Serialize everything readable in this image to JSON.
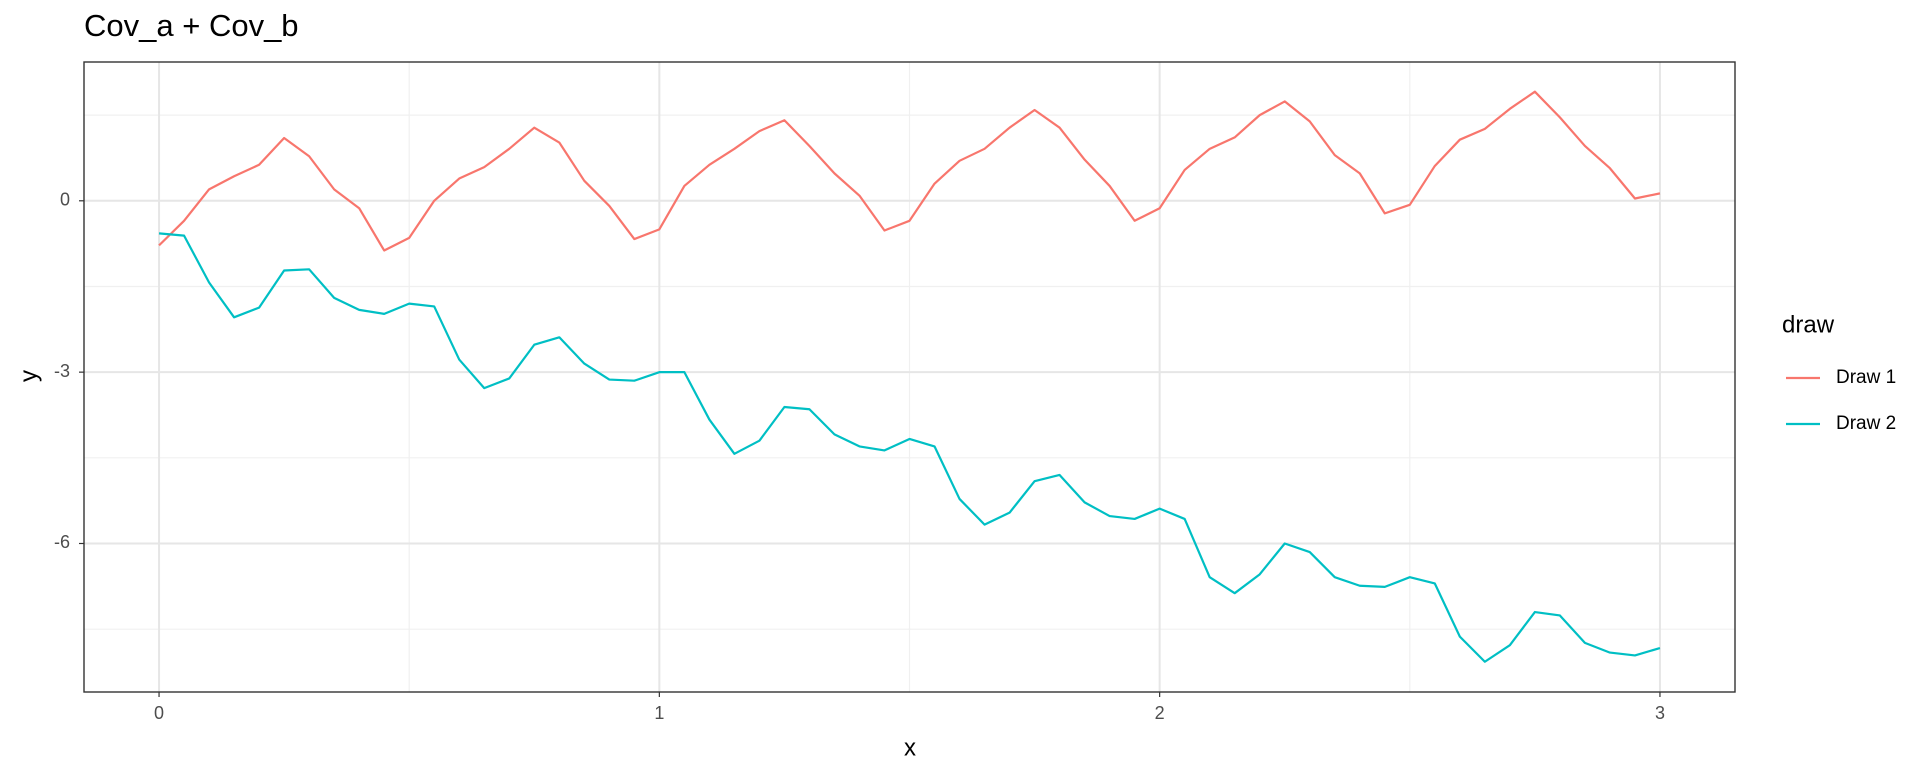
{
  "chart_data": {
    "type": "line",
    "title": "Cov_a + Cov_b",
    "x_label": "x",
    "y_label": "y",
    "x": [
      0,
      0.05,
      0.1,
      0.15,
      0.2,
      0.25,
      0.3,
      0.35,
      0.4,
      0.45,
      0.5,
      0.55,
      0.6,
      0.65,
      0.7,
      0.75,
      0.8,
      0.85,
      0.9,
      0.95,
      1.0,
      1.05,
      1.1,
      1.15,
      1.2,
      1.25,
      1.3,
      1.35,
      1.4,
      1.45,
      1.5,
      1.55,
      1.6,
      1.65,
      1.7,
      1.75,
      1.8,
      1.85,
      1.9,
      1.95,
      2.0,
      2.05,
      2.1,
      2.15,
      2.2,
      2.25,
      2.3,
      2.35,
      2.4,
      2.45,
      2.5,
      2.55,
      2.6,
      2.65,
      2.7,
      2.75,
      2.8,
      2.85,
      2.9,
      2.95,
      3.0
    ],
    "series": [
      {
        "name": "Draw 1",
        "color": "#F8766D",
        "values": [
          -0.78,
          -0.35,
          0.2,
          0.43,
          0.63,
          1.1,
          0.78,
          0.2,
          -0.13,
          -0.87,
          -0.65,
          0,
          0.39,
          0.59,
          0.91,
          1.28,
          1.02,
          0.35,
          -0.09,
          -0.67,
          -0.5,
          0.26,
          0.63,
          0.91,
          1.22,
          1.41,
          0.96,
          0.48,
          0.09,
          -0.52,
          -0.35,
          0.3,
          0.7,
          0.91,
          1.28,
          1.59,
          1.28,
          0.72,
          0.26,
          -0.35,
          -0.13,
          0.54,
          0.91,
          1.11,
          1.5,
          1.74,
          1.39,
          0.8,
          0.48,
          -0.22,
          -0.07,
          0.61,
          1.07,
          1.26,
          1.61,
          1.91,
          1.46,
          0.96,
          0.57,
          0.04,
          0.13
        ]
      },
      {
        "name": "Draw 2",
        "color": "#00BFC4",
        "values": [
          -0.57,
          -0.61,
          -1.43,
          -2.04,
          -1.87,
          -1.22,
          -1.2,
          -1.7,
          -1.91,
          -1.98,
          -1.8,
          -1.85,
          -2.78,
          -3.28,
          -3.11,
          -2.52,
          -2.39,
          -2.85,
          -3.13,
          -3.15,
          -3.0,
          -3.0,
          -3.83,
          -4.43,
          -4.2,
          -3.61,
          -3.65,
          -4.09,
          -4.3,
          -4.37,
          -4.17,
          -4.3,
          -5.22,
          -5.67,
          -5.46,
          -4.91,
          -4.8,
          -5.28,
          -5.52,
          -5.57,
          -5.39,
          -5.57,
          -6.59,
          -6.87,
          -6.54,
          -6.0,
          -6.15,
          -6.59,
          -6.74,
          -6.76,
          -6.59,
          -6.7,
          -7.63,
          -8.07,
          -7.78,
          -7.2,
          -7.26,
          -7.74,
          -7.91,
          -7.96,
          -7.83
        ]
      }
    ],
    "xlim": [
      -0.15,
      3.15
    ],
    "xticks": [
      0,
      1,
      2,
      3
    ],
    "ylim": [
      -8.6,
      2.43
    ],
    "yticks": [
      -6,
      -3,
      0
    ],
    "grid": true,
    "legend_title": "draw",
    "legend_position": "right"
  }
}
